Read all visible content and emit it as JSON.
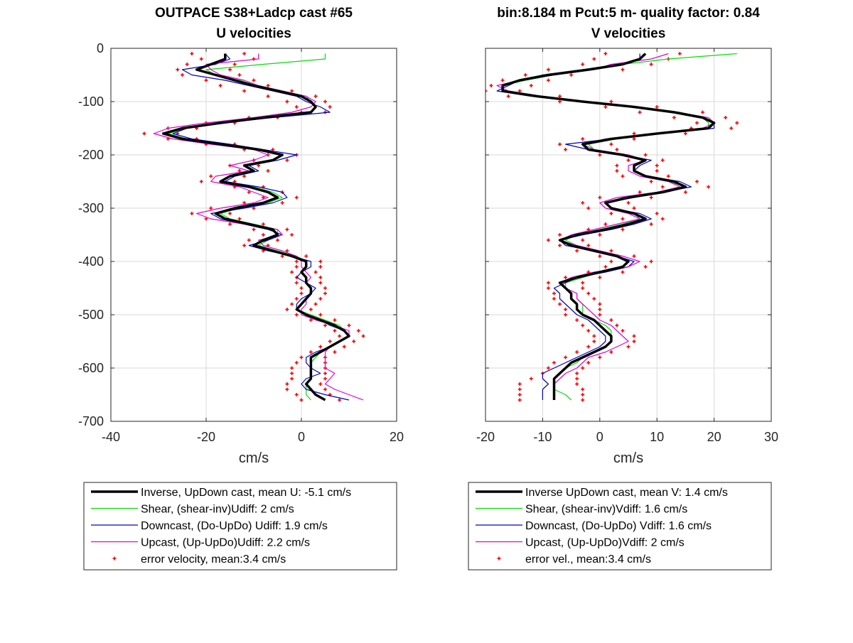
{
  "colors": {
    "inverse": "#000000",
    "shear": "#00e000",
    "downcast": "#0000c8",
    "upcast": "#e000e0",
    "error": "#ff0000",
    "grid": "#d9d9d9",
    "axis": "#262626"
  },
  "chart_data": [
    {
      "type": "line",
      "title_line1": "OUTPACE S38+Ladcp cast #65",
      "title_line2": "U velocities",
      "xlabel": "cm/s",
      "ylabel": "",
      "xlim": [
        -40,
        20
      ],
      "ylim": [
        -700,
        0
      ],
      "xticks": [
        -40,
        -20,
        0,
        20
      ],
      "yticks": [
        0,
        -100,
        -200,
        -300,
        -400,
        -500,
        -600,
        -700
      ],
      "grid": true,
      "legend_position": "below",
      "depth": [
        -10,
        -20,
        -30,
        -40,
        -50,
        -60,
        -70,
        -80,
        -90,
        -100,
        -110,
        -120,
        -130,
        -140,
        -150,
        -160,
        -170,
        -180,
        -190,
        -200,
        -210,
        -220,
        -230,
        -240,
        -250,
        -260,
        -270,
        -280,
        -290,
        -300,
        -310,
        -320,
        -330,
        -340,
        -350,
        -360,
        -370,
        -380,
        -390,
        -400,
        -410,
        -420,
        -430,
        -440,
        -450,
        -460,
        -470,
        -480,
        -490,
        -500,
        -510,
        -520,
        -530,
        -540,
        -550,
        -560,
        -570,
        -580,
        -590,
        -600,
        -610,
        -620,
        -630,
        -640,
        -650,
        -660
      ],
      "series": [
        {
          "name": "Inverse, UpDown cast, mean U:  -5.1 cm/s",
          "color_key": "inverse",
          "width": 3.5,
          "values": [
            -16,
            -16,
            -19,
            -22,
            -18,
            -14,
            -10,
            -5,
            0,
            2,
            3,
            2,
            -8,
            -17,
            -25,
            -29,
            -25,
            -17,
            -9,
            -4,
            -6,
            -12,
            -10,
            -15,
            -17,
            -11,
            -7,
            -5,
            -8,
            -14,
            -18,
            -16,
            -11,
            -6,
            -5,
            -8,
            -10,
            -6,
            -2,
            1,
            1,
            0,
            1,
            1,
            2,
            2,
            1,
            0,
            -1,
            1,
            4,
            7,
            9,
            10,
            8,
            6,
            4,
            2,
            2,
            2,
            2,
            2,
            1,
            2,
            3,
            5
          ]
        },
        {
          "name": "Shear, (shear-inv)Udiff:  2 cm/s",
          "color_key": "shear",
          "width": 1.2,
          "values": [
            5,
            5,
            -8,
            -20,
            -18,
            -13,
            -9,
            -4,
            1,
            2,
            3,
            2,
            -7,
            -16,
            -24,
            -28,
            -24,
            -16,
            -9,
            -4,
            -6,
            -11,
            -9,
            -14,
            -16,
            -10,
            -6,
            -4,
            -7,
            -13,
            -17,
            -15,
            -10,
            -5,
            -5,
            -7,
            -9,
            -5,
            -1,
            1,
            1,
            0,
            1,
            1,
            2,
            2,
            1,
            0,
            -1,
            2,
            5,
            8,
            9,
            10,
            8,
            6,
            4,
            3,
            2,
            2,
            2,
            2,
            1,
            1,
            1,
            2
          ]
        },
        {
          "name": "Downcast, (Do-UpDo) Udiff:  1.9 cm/s",
          "color_key": "downcast",
          "width": 1.2,
          "values": [
            -16,
            -15,
            -18,
            -25,
            -23,
            -16,
            -11,
            -6,
            -1,
            1,
            4,
            6,
            -6,
            -16,
            -24,
            -27,
            -23,
            -15,
            -8,
            -1,
            -5,
            -11,
            -9,
            -14,
            -16,
            -9,
            -4,
            -3,
            -6,
            -12,
            -19,
            -17,
            -12,
            -7,
            -4,
            -7,
            -11,
            -7,
            -2,
            2,
            2,
            0,
            -1,
            1,
            3,
            2,
            0,
            -1,
            -1,
            1,
            4,
            6,
            9,
            10,
            8,
            6,
            3,
            1,
            1,
            2,
            4,
            1,
            0,
            1,
            5,
            10
          ]
        },
        {
          "name": "Upcast, (Up-UpDo)Udiff:  2.2 cm/s",
          "color_key": "upcast",
          "width": 1.2,
          "values": [
            -9,
            -9,
            -20,
            -19,
            -17,
            -12,
            -9,
            -4,
            1,
            3,
            2,
            -2,
            -10,
            -20,
            -28,
            -31,
            -27,
            -19,
            -10,
            -7,
            -10,
            -15,
            -11,
            -18,
            -19,
            -13,
            -10,
            -7,
            -10,
            -17,
            -22,
            -19,
            -12,
            -5,
            -4,
            -9,
            -8,
            -4,
            -1,
            0,
            0,
            1,
            2,
            1,
            2,
            2,
            1,
            1,
            0,
            0,
            3,
            7,
            10,
            10,
            8,
            6,
            5,
            5,
            5,
            5,
            7,
            6,
            5,
            7,
            10,
            13
          ]
        }
      ],
      "error": {
        "name": "error velocity, mean:3.4 cm/s",
        "color_key": "error",
        "values": [
          -23,
          -21,
          -24,
          -26,
          -25,
          -20,
          -17,
          -12,
          -7,
          -3,
          -1,
          0,
          -11,
          -20,
          -28,
          -33,
          -28,
          -20,
          -12,
          -7,
          -10,
          -15,
          -13,
          -19,
          -21,
          -14,
          -11,
          -8,
          -12,
          -19,
          -23,
          -20,
          -15,
          -10,
          -8,
          -11,
          -12,
          -8,
          -4,
          -1,
          -1,
          -2,
          -1,
          -1,
          0,
          0,
          -1,
          -2,
          -3,
          -1,
          2,
          5,
          7,
          8,
          6,
          4,
          2,
          0,
          -1,
          -2,
          -2,
          -2,
          -3,
          -3,
          -1,
          0
        ],
        "values2": [
          -12,
          -10,
          -14,
          -15,
          -13,
          -10,
          -7,
          -2,
          3,
          5,
          6,
          5,
          -5,
          -14,
          -22,
          -26,
          -22,
          -14,
          -6,
          -1,
          -3,
          -9,
          -7,
          -12,
          -14,
          -8,
          -4,
          -1,
          -4,
          -10,
          -15,
          -13,
          -8,
          -3,
          -2,
          -5,
          -7,
          -3,
          1,
          4,
          4,
          3,
          4,
          4,
          5,
          5,
          4,
          3,
          2,
          4,
          7,
          10,
          12,
          13,
          11,
          9,
          7,
          5,
          5,
          5,
          5,
          5,
          4,
          5,
          6,
          8
        ]
      },
      "legend": [
        "Inverse, UpDown cast, mean U:  -5.1 cm/s",
        "Shear, (shear-inv)Udiff:  2 cm/s",
        "Downcast, (Do-UpDo) Udiff:  1.9 cm/s",
        "Upcast, (Up-UpDo)Udiff:  2.2 cm/s",
        "error velocity, mean:3.4 cm/s"
      ]
    },
    {
      "type": "line",
      "title_line1": "bin:8.184 m  Pcut:5 m- quality factor:  0.84",
      "title_line2": "V velocities",
      "xlabel": "cm/s",
      "ylabel": "",
      "xlim": [
        -20,
        30
      ],
      "ylim": [
        -700,
        0
      ],
      "xticks": [
        -20,
        -10,
        0,
        10,
        20,
        30
      ],
      "yticks": [
        0,
        -100,
        -200,
        -300,
        -400,
        -500,
        -600,
        -700
      ],
      "grid": true,
      "legend_position": "below",
      "depth": [
        -10,
        -20,
        -30,
        -40,
        -50,
        -60,
        -70,
        -80,
        -90,
        -100,
        -110,
        -120,
        -130,
        -140,
        -150,
        -160,
        -170,
        -180,
        -190,
        -200,
        -210,
        -220,
        -230,
        -240,
        -250,
        -260,
        -270,
        -280,
        -290,
        -300,
        -310,
        -320,
        -330,
        -340,
        -350,
        -360,
        -370,
        -380,
        -390,
        -400,
        -410,
        -420,
        -430,
        -440,
        -450,
        -460,
        -470,
        -480,
        -490,
        -500,
        -510,
        -520,
        -530,
        -540,
        -550,
        -560,
        -570,
        -580,
        -590,
        -600,
        -610,
        -620,
        -630,
        -640,
        -650,
        -660
      ],
      "series": [
        {
          "name": "Inverse UpDown cast, mean V:  1.4 cm/s",
          "color_key": "inverse",
          "width": 3.5,
          "values": [
            8,
            7,
            4,
            -2,
            -9,
            -14,
            -17,
            -17,
            -11,
            -3,
            6,
            13,
            18,
            20,
            19,
            10,
            2,
            -3,
            -2,
            4,
            8,
            6,
            6,
            8,
            13,
            15,
            11,
            5,
            1,
            2,
            6,
            8,
            5,
            1,
            -4,
            -7,
            -5,
            -1,
            3,
            5,
            4,
            0,
            -4,
            -7,
            -6,
            -5,
            -5,
            -4,
            -4,
            -3,
            -1,
            0,
            1,
            2,
            2,
            1,
            -1,
            -3,
            -5,
            -6,
            -7,
            -8,
            -8,
            -8,
            -8,
            -8
          ]
        },
        {
          "name": "Shear, (shear-inv)Vdiff:  1.6 cm/s",
          "color_key": "shear",
          "width": 1.2,
          "values": [
            24,
            12,
            4,
            -1,
            -8,
            -13,
            -17,
            -17,
            -10,
            -2,
            7,
            14,
            18,
            19,
            19,
            11,
            3,
            -2,
            -1,
            4,
            8,
            6,
            6,
            8,
            12,
            15,
            10,
            4,
            1,
            2,
            6,
            7,
            4,
            0,
            -4,
            -6,
            -4,
            -1,
            3,
            5,
            4,
            0,
            -3,
            -6,
            -6,
            -4,
            -4,
            -3,
            -3,
            -3,
            -1,
            1,
            2,
            2,
            2,
            1,
            -1,
            -3,
            -4,
            -6,
            -7,
            -8,
            -8,
            -8,
            -6,
            -5
          ]
        },
        {
          "name": "Downcast, (Do-UpDo) Vdiff:  1.6 cm/s",
          "color_key": "downcast",
          "width": 1.2,
          "values": [
            7,
            7,
            4,
            -3,
            -10,
            -14,
            -16,
            -18,
            -12,
            -3,
            6,
            13,
            18,
            20,
            20,
            11,
            2,
            -6,
            -2,
            4,
            9,
            7,
            6,
            8,
            14,
            16,
            11,
            6,
            1,
            2,
            7,
            9,
            6,
            2,
            -3,
            -7,
            -6,
            -1,
            3,
            6,
            5,
            1,
            -4,
            -6,
            -8,
            -7,
            -7,
            -6,
            -5,
            -4,
            -2,
            -1,
            0,
            1,
            1,
            0,
            -2,
            -4,
            -6,
            -8,
            -10,
            -10,
            -9,
            -10,
            -10,
            -10
          ]
        },
        {
          "name": "Upcast, (Up-UpDo)Vdiff:  2 cm/s",
          "color_key": "upcast",
          "width": 1.2,
          "values": [
            12,
            9,
            2,
            -1,
            -8,
            -14,
            -18,
            -16,
            -10,
            -2,
            7,
            13,
            19,
            20,
            18,
            9,
            1,
            -3,
            -1,
            5,
            8,
            5,
            5,
            7,
            12,
            14,
            10,
            3,
            0,
            1,
            5,
            7,
            3,
            -1,
            -5,
            -7,
            -4,
            0,
            4,
            7,
            5,
            -1,
            -5,
            -7,
            -6,
            -4,
            -4,
            -3,
            -2,
            -1,
            0,
            2,
            3,
            4,
            5,
            3,
            1,
            -2,
            -3,
            -4,
            -6,
            -7,
            -8,
            -8,
            -8,
            -8
          ]
        }
      ],
      "error": {
        "name": "error vel., mean:3.4 cm/s",
        "color_key": "error",
        "values": [
          1,
          -1,
          -3,
          -9,
          -13,
          -17,
          -19,
          -20,
          -16,
          -7,
          1,
          7,
          13,
          17,
          16,
          6,
          -3,
          -7,
          -6,
          0,
          5,
          3,
          3,
          4,
          9,
          11,
          7,
          0,
          -3,
          -2,
          2,
          4,
          1,
          -2,
          -7,
          -9,
          -7,
          -4,
          0,
          2,
          1,
          -2,
          -6,
          -9,
          -9,
          -8,
          -8,
          -7,
          -6,
          -6,
          -4,
          -3,
          -2,
          -1,
          -1,
          -2,
          -4,
          -6,
          -8,
          -9,
          -10,
          -12,
          -14,
          -14,
          -14,
          -14
        ],
        "values2": [
          14,
          12,
          9,
          4,
          -5,
          -9,
          -12,
          -14,
          -7,
          2,
          10,
          18,
          22,
          24,
          23,
          15,
          6,
          2,
          3,
          8,
          11,
          10,
          10,
          12,
          17,
          19,
          15,
          9,
          5,
          6,
          10,
          11,
          9,
          4,
          0,
          -3,
          -2,
          2,
          6,
          9,
          8,
          4,
          0,
          -3,
          -3,
          -2,
          -1,
          0,
          0,
          0,
          2,
          3,
          4,
          6,
          6,
          5,
          2,
          0,
          -2,
          -3,
          -4,
          -4,
          -4,
          -3,
          -3,
          -3
        ]
      },
      "legend": [
        "Inverse UpDown cast, mean V:  1.4 cm/s",
        "Shear, (shear-inv)Vdiff:  1.6 cm/s",
        "Downcast, (Do-UpDo) Vdiff:  1.6 cm/s",
        "Upcast, (Up-UpDo)Vdiff:  2 cm/s",
        "error vel., mean:3.4 cm/s"
      ]
    }
  ]
}
